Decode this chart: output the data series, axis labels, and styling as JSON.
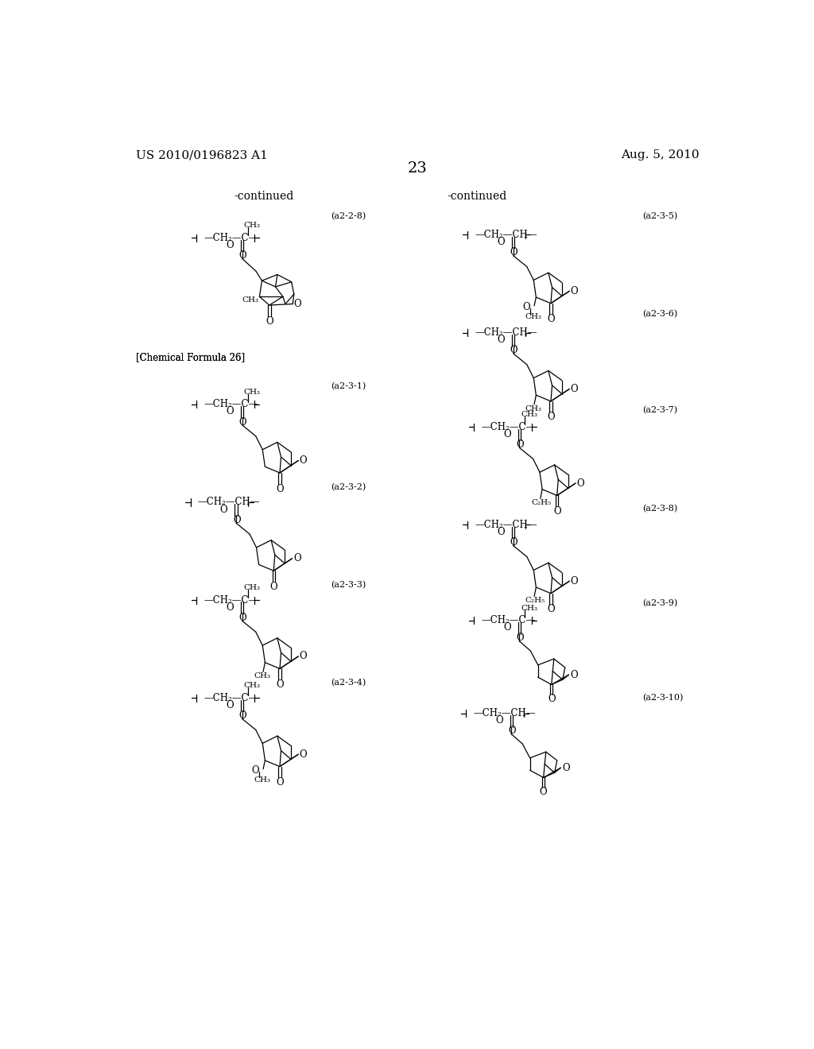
{
  "page_header_left": "US 2010/0196823 A1",
  "page_header_right": "Aug. 5, 2010",
  "page_number": "23",
  "continued_left": "-continued",
  "continued_right": "-continued",
  "chemical_formula_label": "[Chemical Formula 26]",
  "labels_left": [
    "(a2-2-8)",
    "(a2-3-1)",
    "(a2-3-2)",
    "(a2-3-3)",
    "(a2-3-4)"
  ],
  "labels_right": [
    "(a2-3-5)",
    "(a2-3-6)",
    "(a2-3-7)",
    "(a2-3-8)",
    "(a2-3-9)",
    "(a2-3-10)"
  ]
}
